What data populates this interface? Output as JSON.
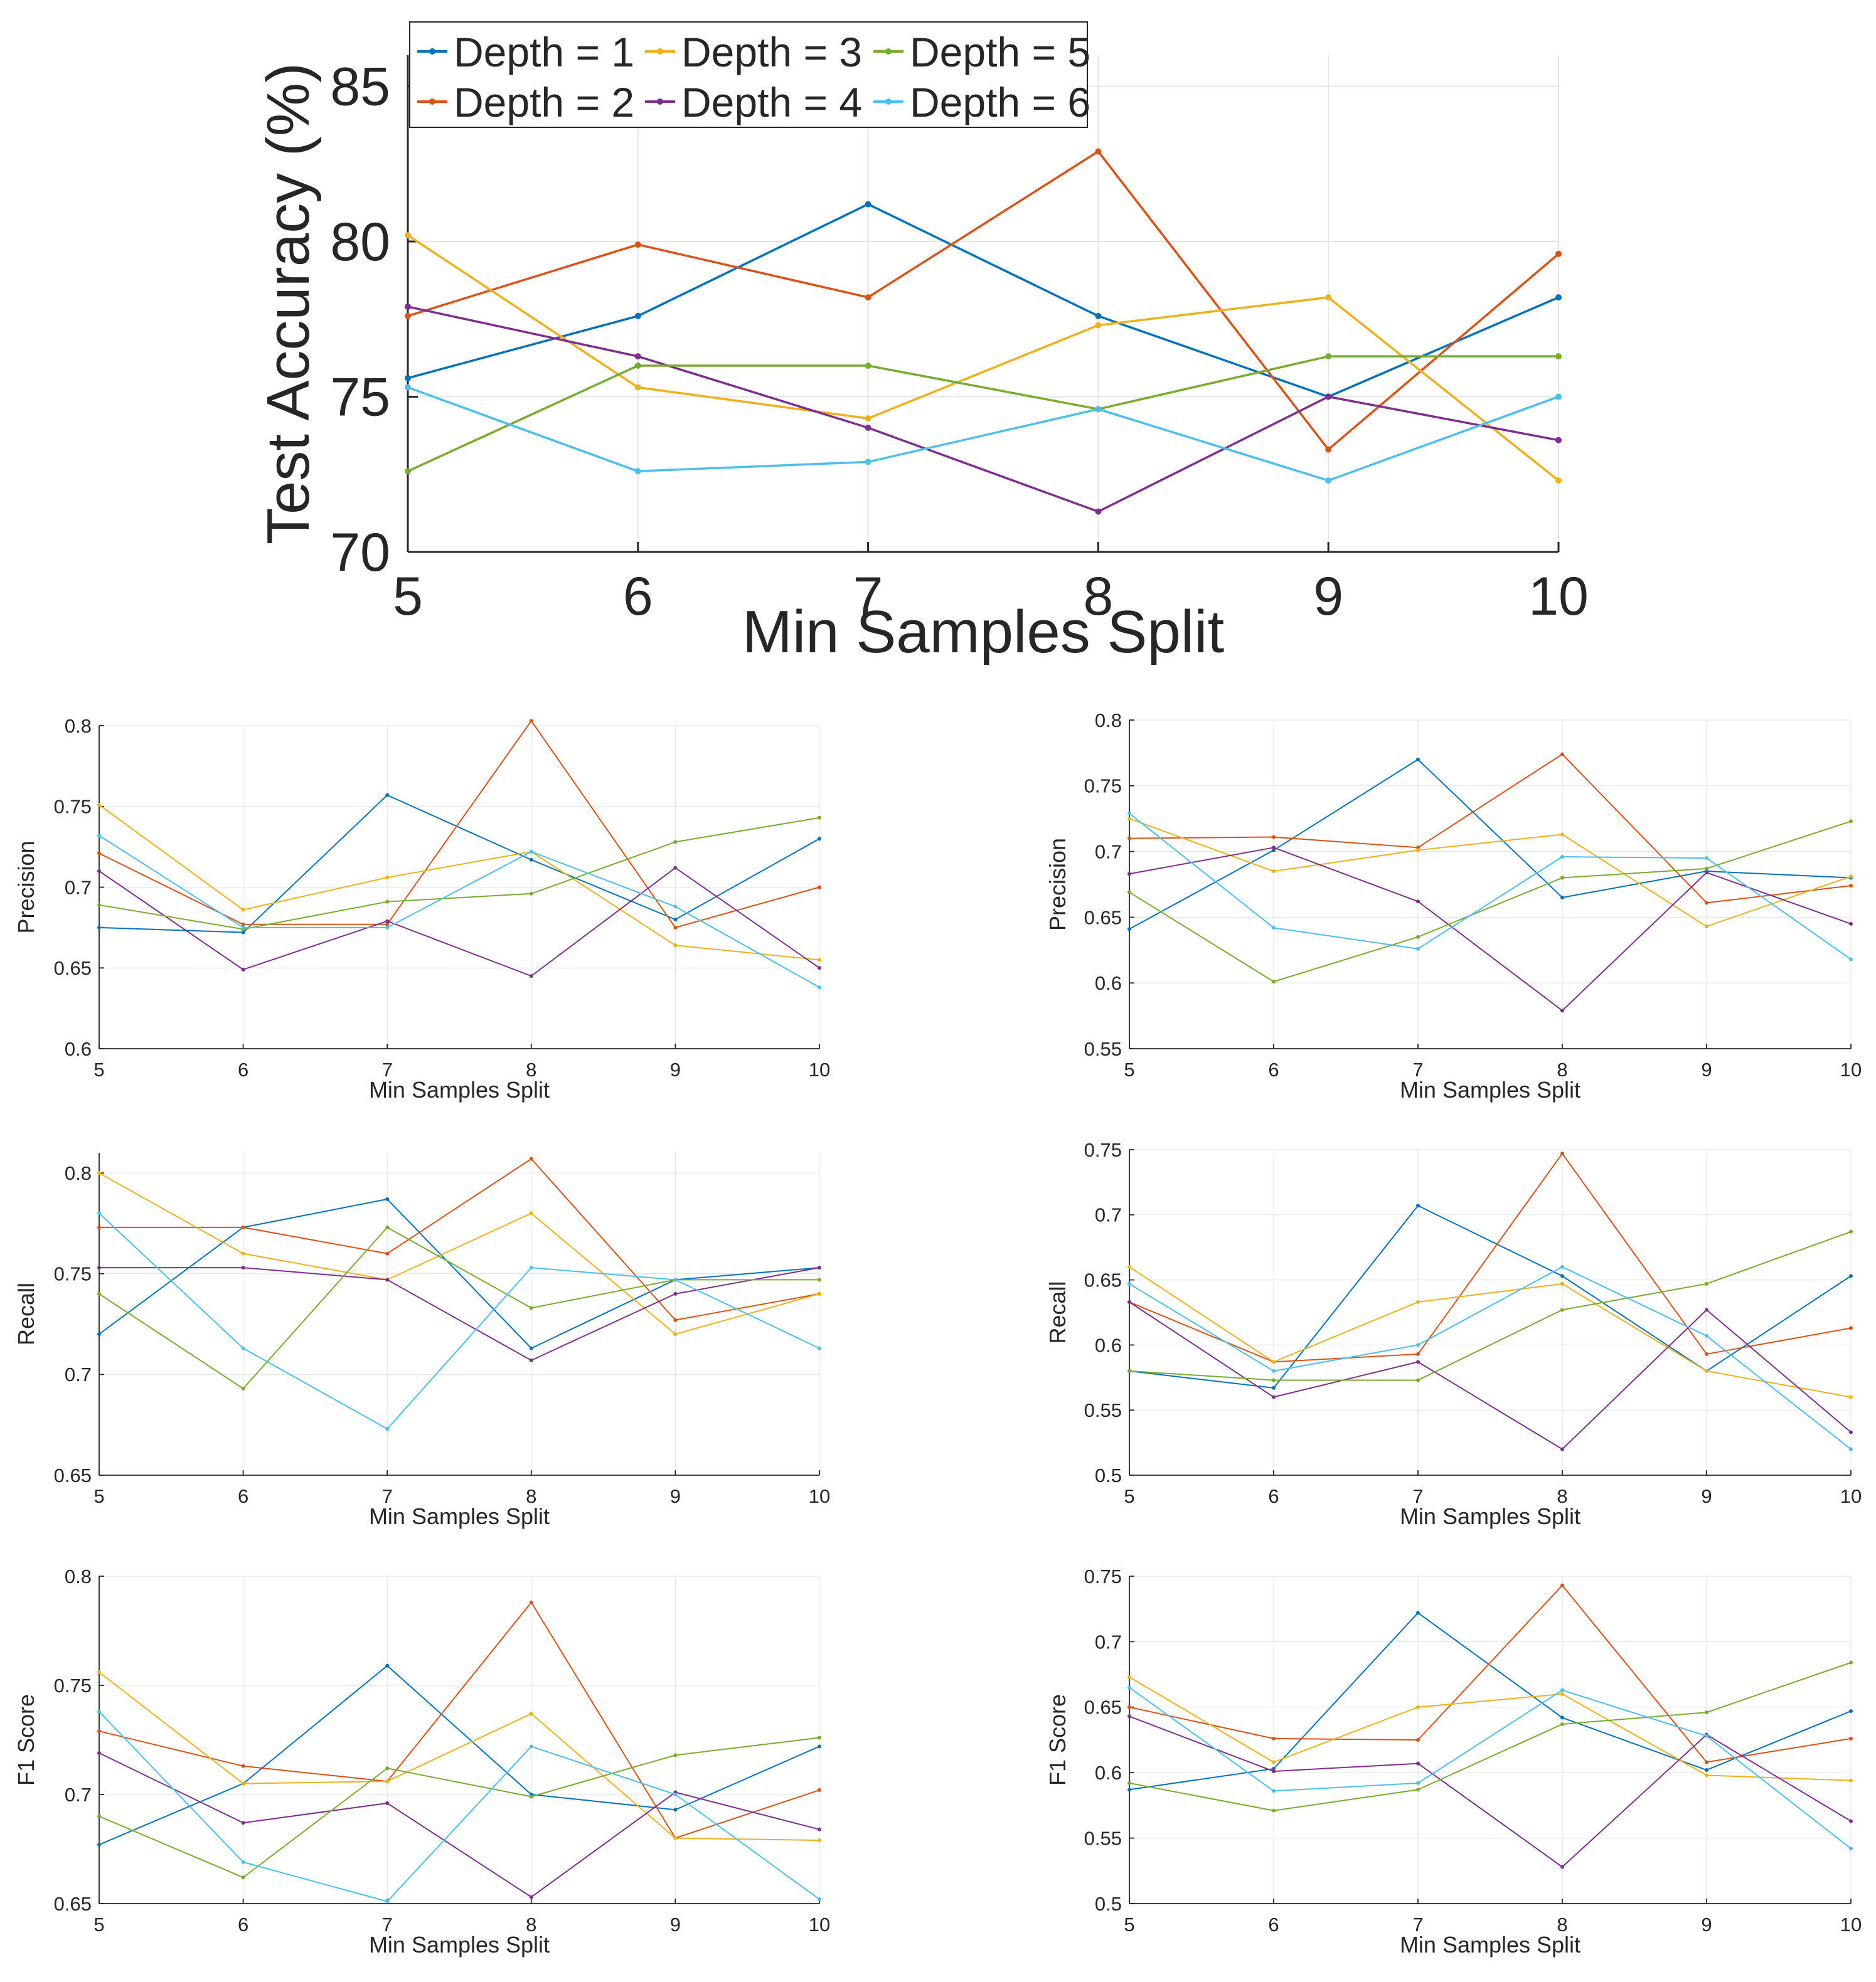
{
  "colors": [
    "#0072BD",
    "#D95319",
    "#EDB120",
    "#7E2F8E",
    "#77AC30",
    "#4DBEEE"
  ],
  "chart_data": [
    {
      "id": "accuracy",
      "type": "line",
      "title": "",
      "xlabel": "Min Samples Split",
      "ylabel": "Test Accuracy (%)",
      "x": [
        5,
        6,
        7,
        8,
        9,
        10
      ],
      "xticks": [
        "5",
        "6",
        "7",
        "8",
        "9",
        "10"
      ],
      "ylim": [
        70,
        86
      ],
      "yticks": [
        "70",
        "75",
        "80",
        "85"
      ],
      "legend": [
        "Depth = 1",
        "Depth = 3",
        "Depth = 5",
        "Depth = 2",
        "Depth = 4",
        "Depth = 6"
      ],
      "legend_position": "top-left",
      "series": [
        {
          "name": "Depth = 1",
          "values": [
            75.6,
            77.6,
            81.2,
            77.6,
            75.0,
            78.2
          ]
        },
        {
          "name": "Depth = 2",
          "values": [
            77.6,
            79.9,
            78.2,
            82.9,
            73.3,
            79.6
          ]
        },
        {
          "name": "Depth = 3",
          "values": [
            80.2,
            75.3,
            74.3,
            77.3,
            78.2,
            72.3
          ]
        },
        {
          "name": "Depth = 4",
          "values": [
            77.9,
            76.3,
            74.0,
            71.3,
            75.0,
            73.6
          ]
        },
        {
          "name": "Depth = 5",
          "values": [
            72.6,
            76.0,
            76.0,
            74.6,
            76.3,
            76.3
          ]
        },
        {
          "name": "Depth = 6",
          "values": [
            75.3,
            72.6,
            72.9,
            74.6,
            72.3,
            75.0
          ]
        }
      ]
    },
    {
      "id": "precision-left",
      "type": "line",
      "xlabel": "Min Samples Split",
      "ylabel": "Precision",
      "x": [
        5,
        6,
        7,
        8,
        9,
        10
      ],
      "xticks": [
        "5",
        "6",
        "7",
        "8",
        "9",
        "10"
      ],
      "ylim": [
        0.6,
        0.8
      ],
      "yticks": [
        "0.6",
        "0.65",
        "0.7",
        "0.75",
        "0.8"
      ],
      "series": [
        {
          "name": "Depth = 1",
          "values": [
            0.675,
            0.672,
            0.757,
            0.717,
            0.68,
            0.73
          ]
        },
        {
          "name": "Depth = 2",
          "values": [
            0.721,
            0.677,
            0.677,
            0.803,
            0.675,
            0.7
          ]
        },
        {
          "name": "Depth = 3",
          "values": [
            0.751,
            0.686,
            0.706,
            0.722,
            0.664,
            0.655
          ]
        },
        {
          "name": "Depth = 4",
          "values": [
            0.71,
            0.649,
            0.679,
            0.645,
            0.712,
            0.65
          ]
        },
        {
          "name": "Depth = 5",
          "values": [
            0.689,
            0.674,
            0.691,
            0.696,
            0.728,
            0.743
          ]
        },
        {
          "name": "Depth = 6",
          "values": [
            0.732,
            0.675,
            0.675,
            0.722,
            0.688,
            0.638
          ]
        }
      ]
    },
    {
      "id": "precision-right",
      "type": "line",
      "xlabel": "Min Samples Split",
      "ylabel": "Precision",
      "x": [
        5,
        6,
        7,
        8,
        9,
        10
      ],
      "xticks": [
        "5",
        "6",
        "7",
        "8",
        "9",
        "10"
      ],
      "ylim": [
        0.55,
        0.8
      ],
      "yticks": [
        "0.55",
        "0.6",
        "0.65",
        "0.7",
        "0.75",
        "0.8"
      ],
      "series": [
        {
          "name": "Depth = 1",
          "values": [
            0.641,
            0.701,
            0.77,
            0.665,
            0.685,
            0.68
          ]
        },
        {
          "name": "Depth = 2",
          "values": [
            0.71,
            0.711,
            0.703,
            0.774,
            0.661,
            0.674
          ]
        },
        {
          "name": "Depth = 3",
          "values": [
            0.725,
            0.685,
            0.701,
            0.713,
            0.643,
            0.681
          ]
        },
        {
          "name": "Depth = 4",
          "values": [
            0.683,
            0.703,
            0.662,
            0.579,
            0.684,
            0.645
          ]
        },
        {
          "name": "Depth = 5",
          "values": [
            0.669,
            0.601,
            0.635,
            0.68,
            0.687,
            0.723
          ]
        },
        {
          "name": "Depth = 6",
          "values": [
            0.729,
            0.642,
            0.626,
            0.696,
            0.695,
            0.618
          ]
        }
      ]
    },
    {
      "id": "recall-left",
      "type": "line",
      "xlabel": "Min Samples Split",
      "ylabel": "Recall",
      "x": [
        5,
        6,
        7,
        8,
        9,
        10
      ],
      "xticks": [
        "5",
        "6",
        "7",
        "8",
        "9",
        "10"
      ],
      "ylim": [
        0.65,
        0.81
      ],
      "yticks": [
        "0.65",
        "0.7",
        "0.75",
        "0.8"
      ],
      "series": [
        {
          "name": "Depth = 1",
          "values": [
            0.72,
            0.773,
            0.787,
            0.713,
            0.747,
            0.753
          ]
        },
        {
          "name": "Depth = 2",
          "values": [
            0.773,
            0.773,
            0.76,
            0.807,
            0.727,
            0.74
          ]
        },
        {
          "name": "Depth = 3",
          "values": [
            0.8,
            0.76,
            0.747,
            0.78,
            0.72,
            0.74
          ]
        },
        {
          "name": "Depth = 4",
          "values": [
            0.753,
            0.753,
            0.747,
            0.707,
            0.74,
            0.753
          ]
        },
        {
          "name": "Depth = 5",
          "values": [
            0.74,
            0.693,
            0.773,
            0.733,
            0.747,
            0.747
          ]
        },
        {
          "name": "Depth = 6",
          "values": [
            0.78,
            0.713,
            0.673,
            0.753,
            0.747,
            0.713
          ]
        }
      ]
    },
    {
      "id": "recall-right",
      "type": "line",
      "xlabel": "Min Samples Split",
      "ylabel": "Recall",
      "x": [
        5,
        6,
        7,
        8,
        9,
        10
      ],
      "xticks": [
        "5",
        "6",
        "7",
        "8",
        "9",
        "10"
      ],
      "ylim": [
        0.5,
        0.75
      ],
      "yticks": [
        "0.5",
        "0.55",
        "0.6",
        "0.65",
        "0.7",
        "0.75"
      ],
      "series": [
        {
          "name": "Depth = 1",
          "values": [
            0.58,
            0.567,
            0.707,
            0.653,
            0.58,
            0.653
          ]
        },
        {
          "name": "Depth = 2",
          "values": [
            0.633,
            0.587,
            0.593,
            0.747,
            0.593,
            0.613
          ]
        },
        {
          "name": "Depth = 3",
          "values": [
            0.66,
            0.587,
            0.633,
            0.647,
            0.58,
            0.56
          ]
        },
        {
          "name": "Depth = 4",
          "values": [
            0.633,
            0.56,
            0.587,
            0.52,
            0.627,
            0.533
          ]
        },
        {
          "name": "Depth = 5",
          "values": [
            0.58,
            0.573,
            0.573,
            0.627,
            0.647,
            0.687
          ]
        },
        {
          "name": "Depth = 6",
          "values": [
            0.647,
            0.58,
            0.6,
            0.66,
            0.607,
            0.52
          ]
        }
      ]
    },
    {
      "id": "f1-left",
      "type": "line",
      "xlabel": "Min Samples Split",
      "ylabel": "F1 Score",
      "x": [
        5,
        6,
        7,
        8,
        9,
        10
      ],
      "xticks": [
        "5",
        "6",
        "7",
        "8",
        "9",
        "10"
      ],
      "ylim": [
        0.65,
        0.8
      ],
      "yticks": [
        "0.65",
        "0.7",
        "0.75",
        "0.8"
      ],
      "series": [
        {
          "name": "Depth = 1",
          "values": [
            0.677,
            0.705,
            0.759,
            0.7,
            0.693,
            0.722
          ]
        },
        {
          "name": "Depth = 2",
          "values": [
            0.729,
            0.713,
            0.706,
            0.788,
            0.68,
            0.702
          ]
        },
        {
          "name": "Depth = 3",
          "values": [
            0.756,
            0.705,
            0.706,
            0.737,
            0.68,
            0.679
          ]
        },
        {
          "name": "Depth = 4",
          "values": [
            0.719,
            0.687,
            0.696,
            0.653,
            0.701,
            0.684
          ]
        },
        {
          "name": "Depth = 5",
          "values": [
            0.69,
            0.662,
            0.712,
            0.699,
            0.718,
            0.726
          ]
        },
        {
          "name": "Depth = 6",
          "values": [
            0.738,
            0.669,
            0.651,
            0.722,
            0.7,
            0.652
          ]
        }
      ]
    },
    {
      "id": "f1-right",
      "type": "line",
      "xlabel": "Min Samples Split",
      "ylabel": "F1 Score",
      "x": [
        5,
        6,
        7,
        8,
        9,
        10
      ],
      "xticks": [
        "5",
        "6",
        "7",
        "8",
        "9",
        "10"
      ],
      "ylim": [
        0.5,
        0.75
      ],
      "yticks": [
        "0.5",
        "0.55",
        "0.6",
        "0.65",
        "0.7",
        "0.75"
      ],
      "series": [
        {
          "name": "Depth = 1",
          "values": [
            0.587,
            0.603,
            0.722,
            0.642,
            0.602,
            0.647
          ]
        },
        {
          "name": "Depth = 2",
          "values": [
            0.65,
            0.626,
            0.625,
            0.743,
            0.608,
            0.626
          ]
        },
        {
          "name": "Depth = 3",
          "values": [
            0.673,
            0.608,
            0.65,
            0.66,
            0.598,
            0.594
          ]
        },
        {
          "name": "Depth = 4",
          "values": [
            0.643,
            0.601,
            0.607,
            0.528,
            0.629,
            0.563
          ]
        },
        {
          "name": "Depth = 5",
          "values": [
            0.592,
            0.571,
            0.587,
            0.637,
            0.646,
            0.684
          ]
        },
        {
          "name": "Depth = 6",
          "values": [
            0.665,
            0.586,
            0.592,
            0.663,
            0.628,
            0.542
          ]
        }
      ]
    }
  ]
}
